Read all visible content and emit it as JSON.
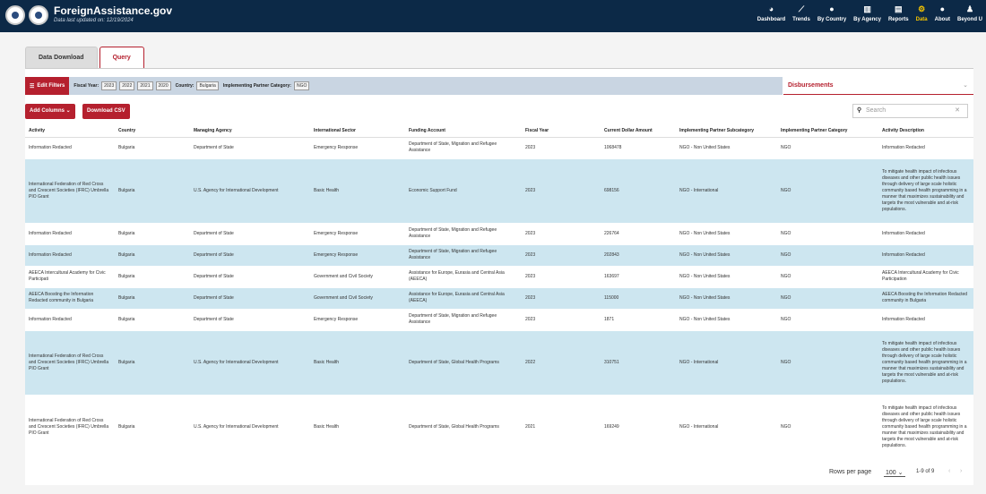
{
  "header": {
    "title": "ForeignAssistance.gov",
    "subtitle": "Data last updated on: 12/19/2024",
    "nav": [
      {
        "label": "Dashboard",
        "icon": "dashboard-icon",
        "glyph": "◕"
      },
      {
        "label": "Trends",
        "icon": "trends-icon",
        "glyph": "⟋"
      },
      {
        "label": "By Country",
        "icon": "globe-icon",
        "glyph": "●"
      },
      {
        "label": "By Agency",
        "icon": "building-icon",
        "glyph": "▥"
      },
      {
        "label": "Reports",
        "icon": "report-icon",
        "glyph": "▤"
      },
      {
        "label": "Data",
        "icon": "data-icon",
        "glyph": "⚙"
      },
      {
        "label": "About",
        "icon": "info-icon",
        "glyph": "●"
      },
      {
        "label": "Beyond U",
        "icon": "person-icon",
        "glyph": "♟"
      }
    ],
    "active_nav": "Data"
  },
  "tabs": [
    "Data Download",
    "Query"
  ],
  "active_tab": "Query",
  "filters": {
    "edit_label": "Edit Filters",
    "fiscal_year_label": "Fiscal Year:",
    "fiscal_years": [
      "2023",
      "2022",
      "2021",
      "2020"
    ],
    "country_label": "Country:",
    "country": "Bulgaria",
    "partner_label": "Implementing Partner Category:",
    "partner": "NGO"
  },
  "metric_select": "Disbursements",
  "buttons": {
    "add_columns": "Add Columns",
    "download_csv": "Download CSV"
  },
  "search": {
    "placeholder": "Search"
  },
  "table": {
    "columns": [
      "Activity",
      "Country",
      "Managing Agency",
      "International Sector",
      "Funding Account",
      "Fiscal Year",
      "Current Dollar Amount",
      "Implementing Partner Subcategory",
      "Implementing Partner Category",
      "Activity Description"
    ],
    "rows": [
      [
        "Information Redacted",
        "Bulgaria",
        "Department of State",
        "Emergency Response",
        "Department of State, Migration and Refugee Assistance",
        "2023",
        "1068478",
        "NGO - Non United States",
        "NGO",
        "Information Redacted"
      ],
      [
        "International Federation of Red Cross and Crescent Societies (IFRC) Umbrella PIO Grant",
        "Bulgaria",
        "U.S. Agency for International Development",
        "Basic Health",
        "Economic Support Fund",
        "2023",
        "698156",
        "NGO - International",
        "NGO",
        "To mitigate health impact of infectious diseases and other public health issues through delivery of large scale holistic community based health programming in a manner that maximizes sustainability and targets the most vulnerable and at-risk populations."
      ],
      [
        "Information Redacted",
        "Bulgaria",
        "Department of State",
        "Emergency Response",
        "Department of State, Migration and Refugee Assistance",
        "2023",
        "226764",
        "NGO - Non United States",
        "NGO",
        "Information Redacted"
      ],
      [
        "Information Redacted",
        "Bulgaria",
        "Department of State",
        "Emergency Response",
        "Department of State, Migration and Refugee Assistance",
        "2023",
        "202843",
        "NGO - Non United States",
        "NGO",
        "Information Redacted"
      ],
      [
        "AEECA Intercultural Academy for Civic Participati",
        "Bulgaria",
        "Department of State",
        "Government and Civil Society",
        "Assistance for Europe, Eurasia and Central Asia (AEECA)",
        "2023",
        "163697",
        "NGO - Non United States",
        "NGO",
        "AEECA Intercultural Academy for Civic Participation"
      ],
      [
        "AEECA Boosting the Information Redacted community in Bulgaria",
        "Bulgaria",
        "Department of State",
        "Government and Civil Society",
        "Assistance for Europe, Eurasia and Central Asia (AEECA)",
        "2023",
        "115000",
        "NGO - Non United States",
        "NGO",
        "AEECA Boosting the Information Redacted community in Bulgaria"
      ],
      [
        "Information Redacted",
        "Bulgaria",
        "Department of State",
        "Emergency Response",
        "Department of State, Migration and Refugee Assistance",
        "2023",
        "1871",
        "NGO - Non United States",
        "NGO",
        "Information Redacted"
      ],
      [
        "International Federation of Red Cross and Crescent Societies (IFRC) Umbrella PIO Grant",
        "Bulgaria",
        "U.S. Agency for International Development",
        "Basic Health",
        "Department of State, Global Health Programs",
        "2022",
        "310751",
        "NGO - International",
        "NGO",
        "To mitigate health impact of infectious diseases and other public health issues through delivery of large scale holistic community based health programming in a manner that maximizes sustainability and targets the most vulnerable and at-risk populations."
      ],
      [
        "International Federation of Red Cross and Crescent Societies (IFRC) Umbrella PIO Grant",
        "Bulgaria",
        "U.S. Agency for International Development",
        "Basic Health",
        "Department of State, Global Health Programs",
        "2021",
        "169249",
        "NGO - International",
        "NGO",
        "To mitigate health impact of infectious diseases and other public health issues through delivery of large scale holistic community based health programming in a manner that maximizes sustainability and targets the most vulnerable and at-risk populations."
      ]
    ]
  },
  "pagination": {
    "rows_label": "Rows per page",
    "rows_value": "100",
    "range": "1-9 of 9"
  },
  "colors": {
    "navy": "#0c2947",
    "accent": "#b5202e",
    "row_alt": "#cde6f0",
    "active_nav": "#f5c400"
  }
}
